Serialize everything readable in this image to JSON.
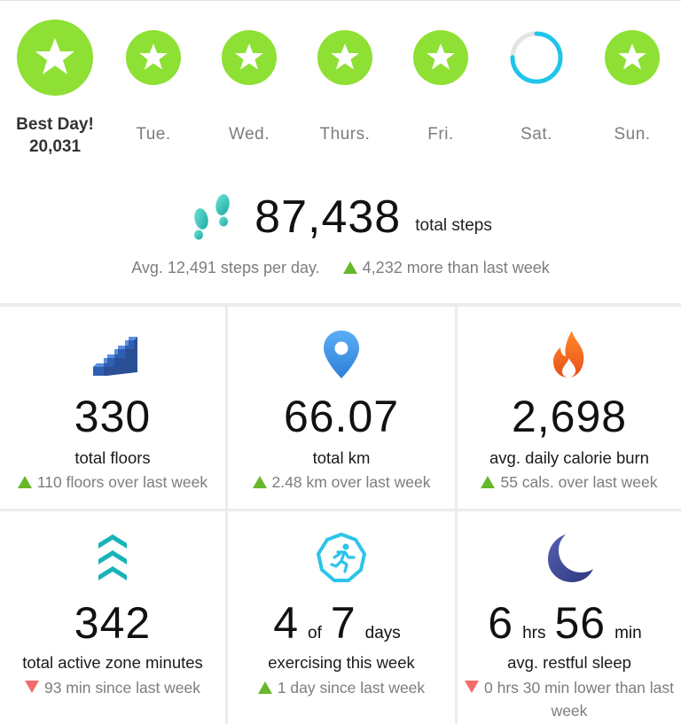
{
  "days": [
    {
      "label": "Best Day!",
      "value": "20,031",
      "status": "goal-met",
      "best": true,
      "icon": "star-icon"
    },
    {
      "label": "Tue.",
      "status": "goal-met",
      "icon": "star-icon"
    },
    {
      "label": "Wed.",
      "status": "goal-met",
      "icon": "star-icon"
    },
    {
      "label": "Thurs.",
      "status": "goal-met",
      "icon": "star-icon"
    },
    {
      "label": "Fri.",
      "status": "goal-met",
      "icon": "star-icon"
    },
    {
      "label": "Sat.",
      "status": "in-progress",
      "progress": 0.75,
      "icon": "progress-ring-icon"
    },
    {
      "label": "Sun.",
      "status": "goal-met",
      "icon": "star-icon"
    }
  ],
  "steps": {
    "total": "87,438",
    "unit": "total steps",
    "average": "Avg. 12,491 steps per day.",
    "delta": "4,232 more than last week",
    "delta_direction": "up",
    "icon": "footprints-icon"
  },
  "stats": [
    {
      "id": "floors",
      "icon": "stairs-icon",
      "value": "330",
      "title": "total floors",
      "delta": "110 floors over last week",
      "direction": "up"
    },
    {
      "id": "distance",
      "icon": "location-pin-icon",
      "value": "66.07",
      "title": "total km",
      "delta": "2.48 km over last week",
      "direction": "up"
    },
    {
      "id": "calories",
      "icon": "flame-icon",
      "value": "2,698",
      "title": "avg. daily calorie burn",
      "delta": "55 cals. over last week",
      "direction": "up"
    },
    {
      "id": "azm",
      "icon": "active-zone-chevrons-icon",
      "value": "342",
      "title": "total active zone minutes",
      "delta": "93 min since last week",
      "direction": "down"
    },
    {
      "id": "exercise",
      "icon": "running-person-icon",
      "value_a": "4",
      "value_of": "of",
      "value_b": "7",
      "value_unit": "days",
      "title": "exercising this week",
      "delta": "1 day since last week",
      "direction": "up"
    },
    {
      "id": "sleep",
      "icon": "moon-icon",
      "hours": "6",
      "hours_unit": "hrs",
      "minutes": "56",
      "minutes_unit": "min",
      "title": "avg. restful sleep",
      "delta": "0 hrs 30 min lower than last week",
      "direction": "down"
    }
  ],
  "colors": {
    "goal_green": "#8ee034",
    "progress_blue": "#1fc5ea",
    "up_green": "#66b82a",
    "down_red": "#f36b6b",
    "stairs_blue": "#3b6fc4",
    "pin_blue": "#3a93e8",
    "flame_orange": "#f26a1b",
    "azm_teal": "#19b5b8",
    "moon_navy": "#3f4a96"
  }
}
